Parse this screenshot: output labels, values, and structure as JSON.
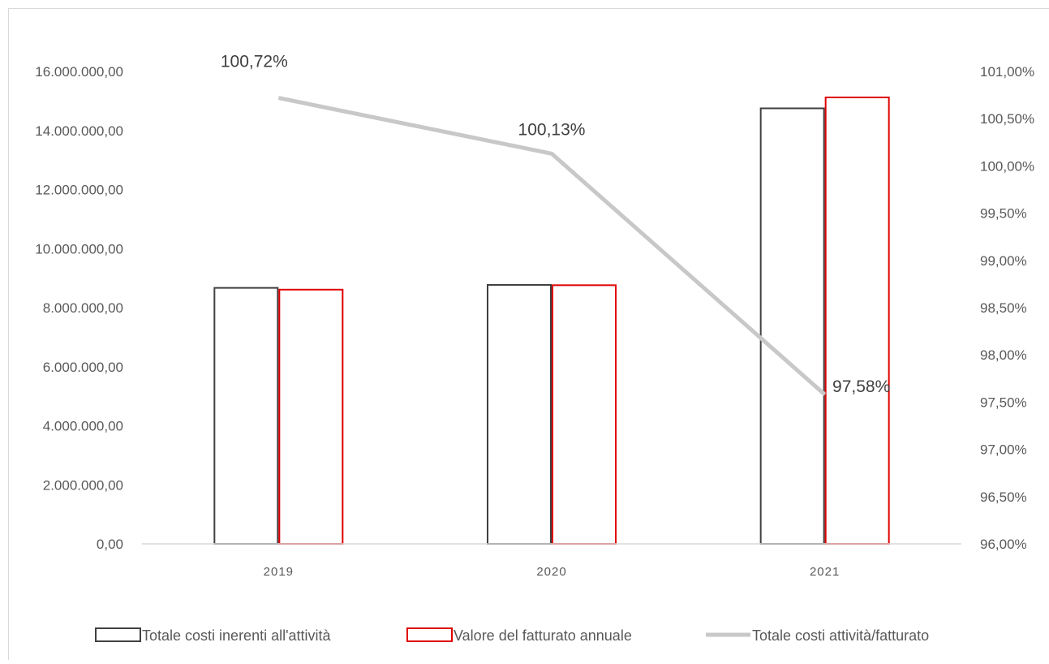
{
  "chart_data": {
    "type": "bar",
    "categories": [
      "2019",
      "2020",
      "2021"
    ],
    "series": [
      {
        "name": "Totale costi inerenti all'attività",
        "type": "bar",
        "axis": "left",
        "values": [
          8670000,
          8770000,
          14750000
        ],
        "color": "#404040"
      },
      {
        "name": "Valore del fatturato annuale",
        "type": "bar",
        "axis": "left",
        "values": [
          8610000,
          8760000,
          15120000
        ],
        "color": "#e00000"
      },
      {
        "name": "Totale costi attività/fatturato",
        "type": "line",
        "axis": "right",
        "values": [
          100.72,
          100.13,
          97.58
        ],
        "color": "#c8c8c8",
        "data_labels": [
          "100,72%",
          "100,13%",
          "97,58%"
        ]
      }
    ],
    "y_left": {
      "lim": [
        0,
        16000000
      ],
      "ticks": [
        "0,00",
        "2.000.000,00",
        "4.000.000,00",
        "6.000.000,00",
        "8.000.000,00",
        "10.000.000,00",
        "12.000.000,00",
        "14.000.000,00",
        "16.000.000,00"
      ]
    },
    "y_right": {
      "lim": [
        96,
        101
      ],
      "ticks": [
        "96,00%",
        "96,50%",
        "97,00%",
        "97,50%",
        "98,00%",
        "98,50%",
        "99,00%",
        "99,50%",
        "100,00%",
        "100,50%",
        "101,00%"
      ]
    },
    "grid": false,
    "legend_position": "bottom",
    "axis_color": "#d9d9d9"
  }
}
